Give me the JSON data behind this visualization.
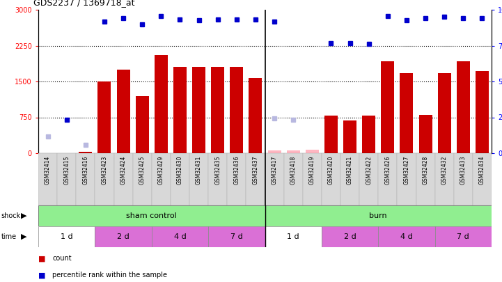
{
  "title": "GDS2237 / 1369718_at",
  "samples": [
    "GSM32414",
    "GSM32415",
    "GSM32416",
    "GSM32423",
    "GSM32424",
    "GSM32425",
    "GSM32429",
    "GSM32430",
    "GSM32431",
    "GSM32435",
    "GSM32436",
    "GSM32437",
    "GSM32417",
    "GSM32418",
    "GSM32419",
    "GSM32420",
    "GSM32421",
    "GSM32422",
    "GSM32426",
    "GSM32427",
    "GSM32428",
    "GSM32432",
    "GSM32433",
    "GSM32434"
  ],
  "counts": [
    0,
    0,
    30,
    1500,
    1750,
    1200,
    2050,
    1800,
    1800,
    1800,
    1800,
    1580,
    50,
    60,
    70,
    780,
    680,
    780,
    1920,
    1680,
    800,
    1680,
    1920,
    1720
  ],
  "percentile_ranks": [
    null,
    700,
    null,
    2750,
    2820,
    2700,
    2870,
    2800,
    2780,
    2790,
    2800,
    2790,
    2750,
    null,
    null,
    2300,
    2300,
    2280,
    2870,
    2780,
    2830,
    2850,
    2820,
    2830
  ],
  "absent_values": [
    null,
    null,
    null,
    null,
    null,
    null,
    null,
    null,
    null,
    null,
    null,
    null,
    60,
    65,
    80,
    null,
    null,
    null,
    null,
    null,
    null,
    null,
    null,
    null
  ],
  "absent_ranks": [
    350,
    null,
    180,
    null,
    null,
    null,
    null,
    null,
    null,
    null,
    null,
    null,
    730,
    700,
    null,
    null,
    null,
    null,
    null,
    null,
    null,
    null,
    null,
    null
  ],
  "shock_groups": [
    {
      "label": "sham control",
      "start": 0,
      "end": 11,
      "color": "#90EE90"
    },
    {
      "label": "burn",
      "start": 12,
      "end": 23,
      "color": "#90EE90"
    }
  ],
  "time_groups": [
    {
      "label": "1 d",
      "start": 0,
      "end": 2,
      "color": "#ffffff"
    },
    {
      "label": "2 d",
      "start": 3,
      "end": 5,
      "color": "#DA70D6"
    },
    {
      "label": "4 d",
      "start": 6,
      "end": 8,
      "color": "#DA70D6"
    },
    {
      "label": "7 d",
      "start": 9,
      "end": 11,
      "color": "#DA70D6"
    },
    {
      "label": "1 d",
      "start": 12,
      "end": 14,
      "color": "#ffffff"
    },
    {
      "label": "2 d",
      "start": 15,
      "end": 17,
      "color": "#DA70D6"
    },
    {
      "label": "4 d",
      "start": 18,
      "end": 20,
      "color": "#DA70D6"
    },
    {
      "label": "7 d",
      "start": 21,
      "end": 23,
      "color": "#DA70D6"
    }
  ],
  "ylim_left": [
    0,
    3000
  ],
  "ylim_right": [
    0,
    100
  ],
  "yticks_left": [
    0,
    750,
    1500,
    2250,
    3000
  ],
  "yticks_right": [
    0,
    25,
    50,
    75,
    100
  ],
  "bar_color": "#cc0000",
  "blue_color": "#0000cc",
  "absent_val_color": "#FFB6C1",
  "absent_rank_color": "#b8b8e0",
  "background_color": "#ffffff"
}
